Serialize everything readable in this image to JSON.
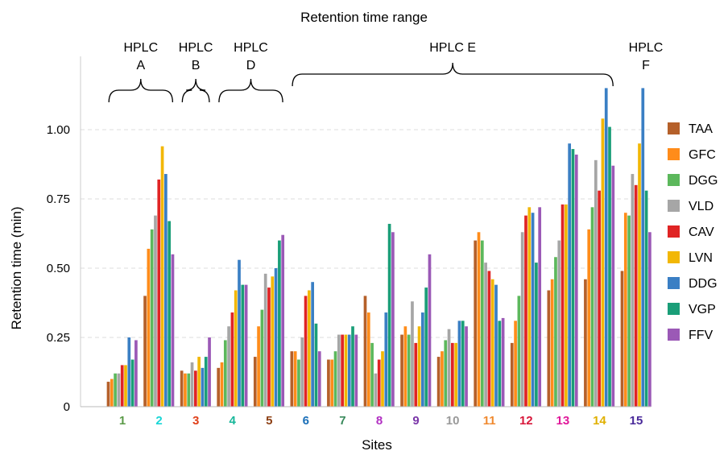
{
  "chart_data": {
    "type": "bar",
    "title": "Retention time range",
    "xlabel": "Sites",
    "ylabel": "Retention time (min)",
    "ylim": [
      0,
      1.25
    ],
    "yticks": [
      "0",
      "0.25",
      "0.50",
      "0.75",
      "1.00"
    ],
    "grid": true,
    "legend_position": "right",
    "categories": [
      "1",
      "2",
      "3",
      "4",
      "5",
      "6",
      "7",
      "8",
      "9",
      "10",
      "11",
      "12",
      "13",
      "14",
      "15"
    ],
    "category_colors": [
      "#5a9a47",
      "#19d6d6",
      "#e0401a",
      "#17b79a",
      "#8c3f13",
      "#1a6fb8",
      "#3a8a5c",
      "#b12fc2",
      "#7a35a8",
      "#9a9a9a",
      "#f08a30",
      "#d8173a",
      "#e0189a",
      "#e0b000",
      "#4a2a9a"
    ],
    "hplc_groups": [
      {
        "label_line1": "HPLC",
        "label_line2": "A",
        "from": "1",
        "to": "2"
      },
      {
        "label_line1": "HPLC",
        "label_line2": "B",
        "from": "3",
        "to": "3"
      },
      {
        "label_line1": "HPLC",
        "label_line2": "D",
        "from": "4",
        "to": "5"
      },
      {
        "label_line1": "HPLC",
        "label_line2": "E",
        "from": "6",
        "to": "14"
      },
      {
        "label_line1": "HPLC",
        "label_line2": "F",
        "from": "15",
        "to": "15"
      }
    ],
    "series": [
      {
        "name": "TAA",
        "color": "#b5602a",
        "values": [
          0.09,
          0.4,
          0.13,
          0.14,
          0.18,
          0.2,
          0.17,
          0.4,
          0.26,
          0.18,
          0.6,
          0.23,
          0.42,
          0.46,
          0.49
        ]
      },
      {
        "name": "GFC",
        "color": "#ff8c1a",
        "values": [
          0.1,
          0.57,
          0.12,
          0.16,
          0.29,
          0.2,
          0.17,
          0.34,
          0.29,
          0.2,
          0.63,
          0.31,
          0.46,
          0.64,
          0.7
        ]
      },
      {
        "name": "DGG",
        "color": "#5cb85c",
        "values": [
          0.12,
          0.64,
          0.12,
          0.24,
          0.35,
          0.17,
          0.2,
          0.23,
          0.26,
          0.24,
          0.6,
          0.4,
          0.54,
          0.72,
          0.69
        ]
      },
      {
        "name": "VLD",
        "color": "#a6a6a6",
        "values": [
          0.12,
          0.69,
          0.16,
          0.29,
          0.48,
          0.25,
          0.26,
          0.12,
          0.38,
          0.28,
          0.52,
          0.63,
          0.6,
          0.89,
          0.84
        ]
      },
      {
        "name": "CAV",
        "color": "#e02424",
        "values": [
          0.15,
          0.82,
          0.13,
          0.34,
          0.43,
          0.4,
          0.26,
          0.17,
          0.23,
          0.23,
          0.49,
          0.69,
          0.73,
          0.78,
          0.8
        ]
      },
      {
        "name": "LVN",
        "color": "#f2b705",
        "values": [
          0.15,
          0.94,
          0.18,
          0.42,
          0.47,
          0.42,
          0.26,
          0.2,
          0.29,
          0.23,
          0.46,
          0.72,
          0.73,
          1.04,
          0.95
        ]
      },
      {
        "name": "DDG",
        "color": "#3a7fc4",
        "values": [
          0.25,
          0.84,
          0.14,
          0.53,
          0.5,
          0.45,
          0.26,
          0.34,
          0.34,
          0.31,
          0.44,
          0.7,
          0.95,
          1.15,
          1.15
        ]
      },
      {
        "name": "VGP",
        "color": "#1a9e78",
        "values": [
          0.17,
          0.67,
          0.18,
          0.44,
          0.6,
          0.3,
          0.29,
          0.66,
          0.43,
          0.31,
          0.31,
          0.52,
          0.93,
          1.01,
          0.78
        ]
      },
      {
        "name": "FFV",
        "color": "#9b59b6",
        "values": [
          0.24,
          0.55,
          0.25,
          0.44,
          0.62,
          0.2,
          0.26,
          0.63,
          0.55,
          0.29,
          0.32,
          0.72,
          0.91,
          0.87,
          0.63
        ]
      }
    ]
  }
}
